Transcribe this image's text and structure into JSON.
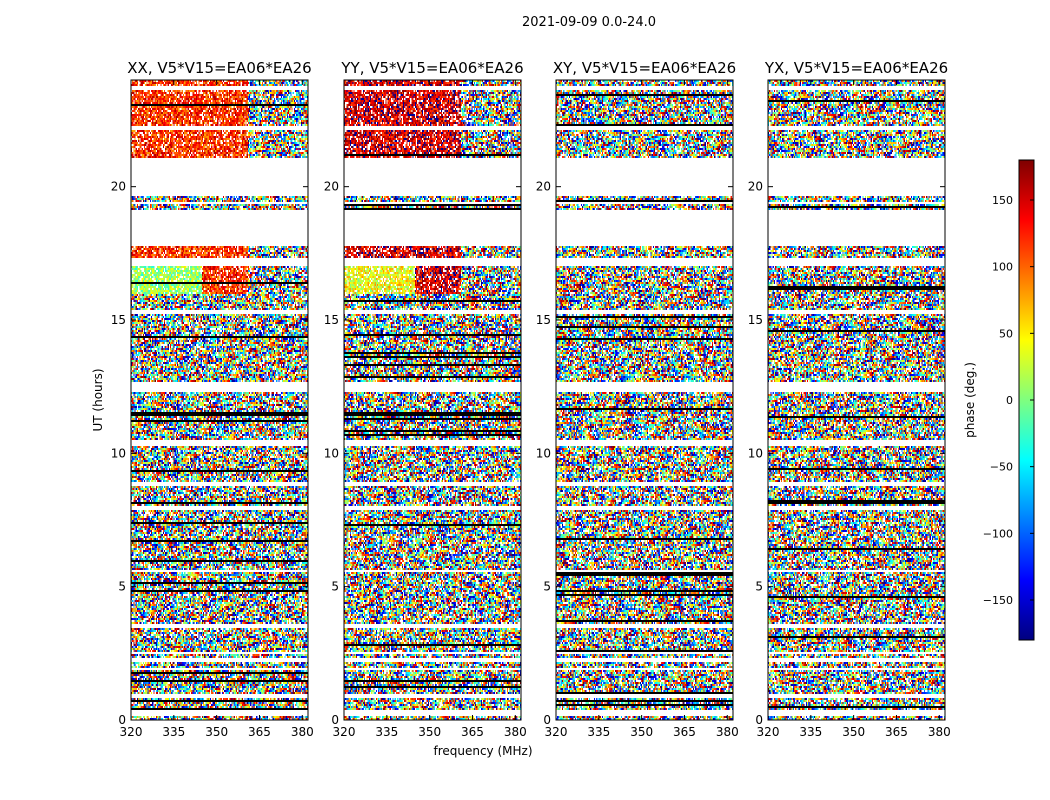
{
  "figure": {
    "suptitle": "2021-09-09 0.0-24.0",
    "xlabel": "frequency (MHz)",
    "ylabel": "UT (hours)"
  },
  "colorbar": {
    "label": "phase (deg.)",
    "range": [
      -180,
      180
    ],
    "ticks": [
      -150,
      -100,
      -50,
      0,
      50,
      100,
      150
    ],
    "tick_labels": [
      "−150",
      "−100",
      "−50",
      "0",
      "50",
      "100",
      "150"
    ],
    "colormap": [
      "#00007f",
      "#0000ff",
      "#007fff",
      "#00ffff",
      "#7fff7f",
      "#ffff00",
      "#ff7f00",
      "#ff0000",
      "#7f0000"
    ]
  },
  "chart_data": {
    "type": "heatmap",
    "title": "2021-09-09 0.0-24.0",
    "xlabel": "frequency (MHz)",
    "ylabel": "UT (hours)",
    "xlim": [
      320,
      382
    ],
    "ylim": [
      0,
      24
    ],
    "x_ticks": [
      320,
      335,
      350,
      365,
      380
    ],
    "x_tick_labels": [
      "320",
      "335",
      "350",
      "365",
      "380"
    ],
    "y_ticks": [
      0,
      5,
      10,
      15,
      20
    ],
    "y_tick_labels": [
      "0",
      "5",
      "10",
      "15",
      "20"
    ],
    "value_label": "phase (deg.)",
    "value_range": [
      -180,
      180
    ],
    "panels": [
      {
        "title": "XX, V5*V15=EA06*EA26",
        "polarization": "XX",
        "coherent_hours": [
          [
            16.0,
            17.8
          ],
          [
            21.0,
            24.0
          ]
        ],
        "coherent_phase_deg": 120,
        "coherent_freq_max_mhz": 361
      },
      {
        "title": "YY, V5*V15=EA06*EA26",
        "polarization": "YY",
        "coherent_hours": [
          [
            16.0,
            17.8
          ],
          [
            21.0,
            24.0
          ]
        ],
        "coherent_phase_deg": 150,
        "coherent_freq_max_mhz": 361
      },
      {
        "title": "XY, V5*V15=EA06*EA26",
        "polarization": "XY",
        "coherent_hours": [],
        "coherent_phase_deg": null,
        "coherent_freq_max_mhz": null
      },
      {
        "title": "YX, V5*V15=EA06*EA26",
        "polarization": "YX",
        "coherent_hours": [],
        "coherent_phase_deg": null,
        "coherent_freq_max_mhz": null
      }
    ],
    "flagged_hours": [
      [
        0.15,
        0.35
      ],
      [
        0.85,
        0.95
      ],
      [
        1.85,
        1.95
      ],
      [
        2.2,
        2.3
      ],
      [
        2.45,
        2.55
      ],
      [
        3.45,
        3.6
      ],
      [
        5.55,
        5.65
      ],
      [
        7.9,
        8.0
      ],
      [
        8.75,
        8.9
      ],
      [
        10.3,
        10.5
      ],
      [
        12.3,
        12.7
      ],
      [
        15.25,
        15.4
      ],
      [
        17.05,
        17.3
      ],
      [
        17.8,
        18.05
      ],
      [
        18.1,
        19.1
      ],
      [
        19.35,
        19.45
      ],
      [
        19.65,
        21.1
      ],
      [
        22.1,
        22.3
      ],
      [
        23.6,
        23.75
      ]
    ]
  }
}
